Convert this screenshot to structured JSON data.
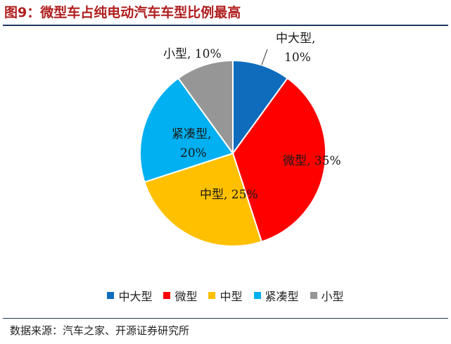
{
  "title": "图9：微型车占纯电动汽车车型比例最高",
  "source": "数据来源：汽车之家、开源证券研究所",
  "chart_data": {
    "type": "pie",
    "start_angle": "12 o'clock",
    "direction": "clockwise",
    "legend_position": "bottom",
    "slices": [
      {
        "name": "中大型",
        "value": 10,
        "label": "中大型,",
        "pct": "10%",
        "color": "#0f6cbd"
      },
      {
        "name": "微型",
        "value": 35,
        "label": "微型,",
        "pct": "35%",
        "color": "#ff0000"
      },
      {
        "name": "中型",
        "value": 25,
        "label": "中型,",
        "pct": "25%",
        "color": "#ffc000"
      },
      {
        "name": "紧凑型",
        "value": 20,
        "label": "紧凑型,",
        "pct": "20%",
        "color": "#00b0f0"
      },
      {
        "name": "小型",
        "value": 10,
        "label": "小型,",
        "pct": "10%",
        "color": "#969696"
      }
    ]
  }
}
